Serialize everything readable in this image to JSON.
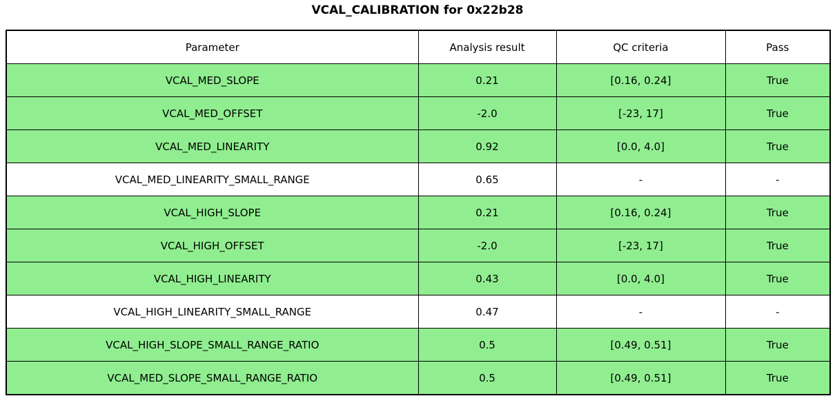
{
  "colors": {
    "row_highlight": "#90EE90",
    "row_plain": "#FFFFFF",
    "border": "#000000",
    "text": "#000000",
    "background": "#FFFFFF"
  },
  "chart_data": {
    "type": "table",
    "title": "VCAL_CALIBRATION for 0x22b28",
    "columns": [
      "Parameter",
      "Analysis result",
      "QC criteria",
      "Pass"
    ],
    "rows": [
      {
        "parameter": "VCAL_MED_SLOPE",
        "analysis_result": "0.21",
        "qc_criteria": "[0.16, 0.24]",
        "pass": "True",
        "highlighted": true
      },
      {
        "parameter": "VCAL_MED_OFFSET",
        "analysis_result": "-2.0",
        "qc_criteria": "[-23, 17]",
        "pass": "True",
        "highlighted": true
      },
      {
        "parameter": "VCAL_MED_LINEARITY",
        "analysis_result": "0.92",
        "qc_criteria": "[0.0, 4.0]",
        "pass": "True",
        "highlighted": true
      },
      {
        "parameter": "VCAL_MED_LINEARITY_SMALL_RANGE",
        "analysis_result": "0.65",
        "qc_criteria": "-",
        "pass": "-",
        "highlighted": false
      },
      {
        "parameter": "VCAL_HIGH_SLOPE",
        "analysis_result": "0.21",
        "qc_criteria": "[0.16, 0.24]",
        "pass": "True",
        "highlighted": true
      },
      {
        "parameter": "VCAL_HIGH_OFFSET",
        "analysis_result": "-2.0",
        "qc_criteria": "[-23, 17]",
        "pass": "True",
        "highlighted": true
      },
      {
        "parameter": "VCAL_HIGH_LINEARITY",
        "analysis_result": "0.43",
        "qc_criteria": "[0.0, 4.0]",
        "pass": "True",
        "highlighted": true
      },
      {
        "parameter": "VCAL_HIGH_LINEARITY_SMALL_RANGE",
        "analysis_result": "0.47",
        "qc_criteria": "-",
        "pass": "-",
        "highlighted": false
      },
      {
        "parameter": "VCAL_HIGH_SLOPE_SMALL_RANGE_RATIO",
        "analysis_result": "0.5",
        "qc_criteria": "[0.49, 0.51]",
        "pass": "True",
        "highlighted": true
      },
      {
        "parameter": "VCAL_MED_SLOPE_SMALL_RANGE_RATIO",
        "analysis_result": "0.5",
        "qc_criteria": "[0.49, 0.51]",
        "pass": "True",
        "highlighted": true
      }
    ]
  }
}
